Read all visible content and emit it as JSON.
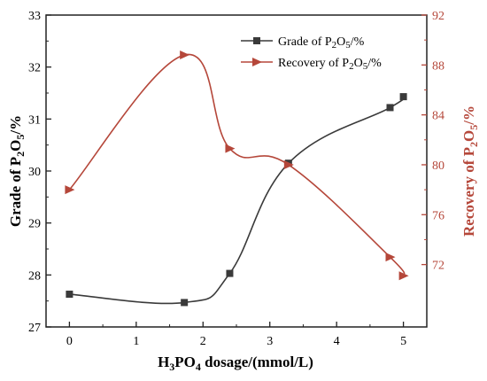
{
  "chart_data": {
    "type": "line",
    "xlabel_main": "H",
    "xlabel_sub1": "3",
    "xlabel_mid": "PO",
    "xlabel_sub2": "4",
    "xlabel_rest": " dosage/(mmol/L)",
    "ylabel_left_main": "Grade of P",
    "ylabel_left_sub1": "2",
    "ylabel_left_mid": "O",
    "ylabel_left_sub2": "5",
    "ylabel_left_rest": "/%",
    "ylabel_right_main": "Recovery of P",
    "ylabel_right_sub1": "2",
    "ylabel_right_mid": "O",
    "ylabel_right_sub2": "5",
    "ylabel_right_rest": "/%",
    "xlim": [
      -0.35,
      5.35
    ],
    "ylim_left": [
      27,
      33
    ],
    "ylim_right": [
      67,
      92
    ],
    "xticks": [
      0,
      1,
      2,
      3,
      4,
      5
    ],
    "yticks_left": [
      27,
      28,
      29,
      30,
      31,
      32,
      33
    ],
    "yticks_right": [
      72,
      76,
      80,
      84,
      88,
      92
    ],
    "right_axis_color": "#b5473a",
    "series": [
      {
        "name": "Grade of P2O5/%",
        "legend_main": "Grade of P",
        "legend_sub1": "2",
        "legend_mid": "O",
        "legend_sub2": "5",
        "legend_rest": "/%",
        "axis": "left",
        "color": "#3a3a3a",
        "marker": "square",
        "x": [
          0,
          1.72,
          2.4,
          3.28,
          4.8,
          5.0
        ],
        "y": [
          27.63,
          27.47,
          28.03,
          30.15,
          31.22,
          31.43
        ]
      },
      {
        "name": "Recovery of P2O5/%",
        "legend_main": "Recovery of P",
        "legend_sub1": "2",
        "legend_mid": "O",
        "legend_sub2": "5",
        "legend_rest": "/%",
        "axis": "right",
        "color": "#b5473a",
        "marker": "triangle-right",
        "x": [
          0,
          1.72,
          2.4,
          3.28,
          4.8,
          5.0
        ],
        "y": [
          78.0,
          88.8,
          81.3,
          80.0,
          72.6,
          71.1
        ]
      }
    ],
    "legend_position": "top-right"
  }
}
